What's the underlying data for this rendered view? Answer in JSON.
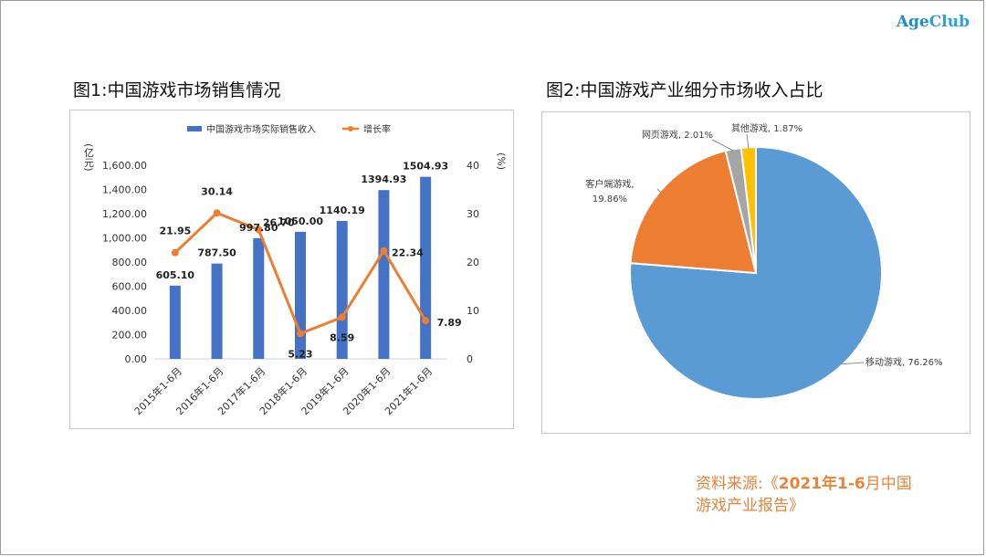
{
  "logo": {
    "part1": "Age",
    "part2": "Club"
  },
  "fig1_title": "图1:中国游戏市场销售情况",
  "fig2_title": "图2:中国游戏产业细分市场收入占比",
  "source": {
    "prefix": "资料来源:《",
    "year": "2021年1-6",
    "rest": "月中国游戏产业报告》"
  },
  "chart_data": [
    {
      "type": "bar",
      "categories": [
        "2015年1-6月",
        "2016年1-6月",
        "2017年1-6月",
        "2018年1-6月",
        "2019年1-6月",
        "2020年1-6月",
        "2021年1-6月"
      ],
      "series": [
        {
          "name": "中国游戏市场实际销售收入",
          "type": "bar",
          "axis": "left",
          "values": [
            605.1,
            787.5,
            997.8,
            1050.0,
            1140.19,
            1394.93,
            1504.93
          ],
          "labels": [
            "605.10",
            "787.50",
            "997.80",
            "1050.00",
            "1140.19",
            "1394.93",
            "1504.93"
          ],
          "color": "#4472c4"
        },
        {
          "name": "增长率",
          "type": "line",
          "axis": "right",
          "values": [
            21.95,
            30.14,
            26.7,
            5.23,
            8.59,
            22.34,
            7.89
          ],
          "labels": [
            "21.95",
            "30.14",
            "26.70",
            "5.23",
            "8.59",
            "22.34",
            "7.89"
          ],
          "color": "#ed7d31"
        }
      ],
      "ylabel_left": "(亿元)",
      "ylabel_right": "(%)",
      "ylim_left": [
        0,
        1600
      ],
      "ylim_right": [
        0,
        40
      ],
      "yticks_left": [
        "0.00",
        "200.00",
        "400.00",
        "600.00",
        "800.00",
        "1,000.00",
        "1,200.00",
        "1,400.00",
        "1,600.00"
      ],
      "yticks_right": [
        "0",
        "10",
        "20",
        "30",
        "40"
      ],
      "legend_position": "top",
      "grid": false
    },
    {
      "type": "pie",
      "slices": [
        {
          "label": "移动游戏, 76.26%",
          "value": 76.26,
          "color": "#5b9bd5"
        },
        {
          "label": "客户端游戏, 19.86%",
          "value": 19.86,
          "color": "#ed7d31"
        },
        {
          "label": "网页游戏, 2.01%",
          "value": 2.01,
          "color": "#a5a5a5"
        },
        {
          "label": "其他游戏, 1.87%",
          "value": 1.87,
          "color": "#ffc000"
        }
      ]
    }
  ]
}
